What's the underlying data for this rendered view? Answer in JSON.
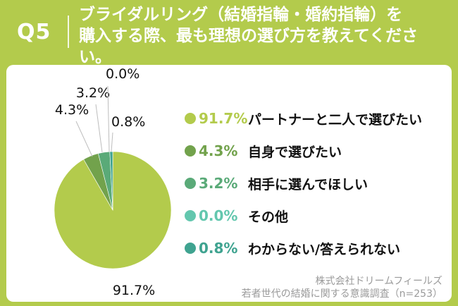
{
  "header": {
    "qnum": "Q5",
    "question_line1": "ブライダルリング（結婚指輪・婚約指輪）を",
    "question_line2": "購入する際、最も理想の選び方を教えてくださ",
    "question_line3": "い。"
  },
  "colors": {
    "frame": "#b3cb4c",
    "pie_main": "#b3cb4c"
  },
  "chart_data": {
    "type": "pie",
    "title": "",
    "slices": [
      {
        "label": "パートナーと二人で選びたい",
        "value": 91.7,
        "pct": "91.7%",
        "color": "#b3cb4c"
      },
      {
        "label": "自身で選びたい",
        "value": 4.3,
        "pct": "4.3%",
        "color": "#72a24c"
      },
      {
        "label": "相手に選んでほしい",
        "value": 3.2,
        "pct": "3.2%",
        "color": "#5aaa78"
      },
      {
        "label": "その他",
        "value": 0.0,
        "pct": "0.0%",
        "color": "#63c7ae"
      },
      {
        "label": "わからない/答えられない",
        "value": 0.8,
        "pct": "0.8%",
        "color": "#3fa390"
      }
    ]
  },
  "source": {
    "line1": "株式会社ドリームフィールズ",
    "line2": "若者世代の結婚に関する意識調査（n=253）"
  }
}
